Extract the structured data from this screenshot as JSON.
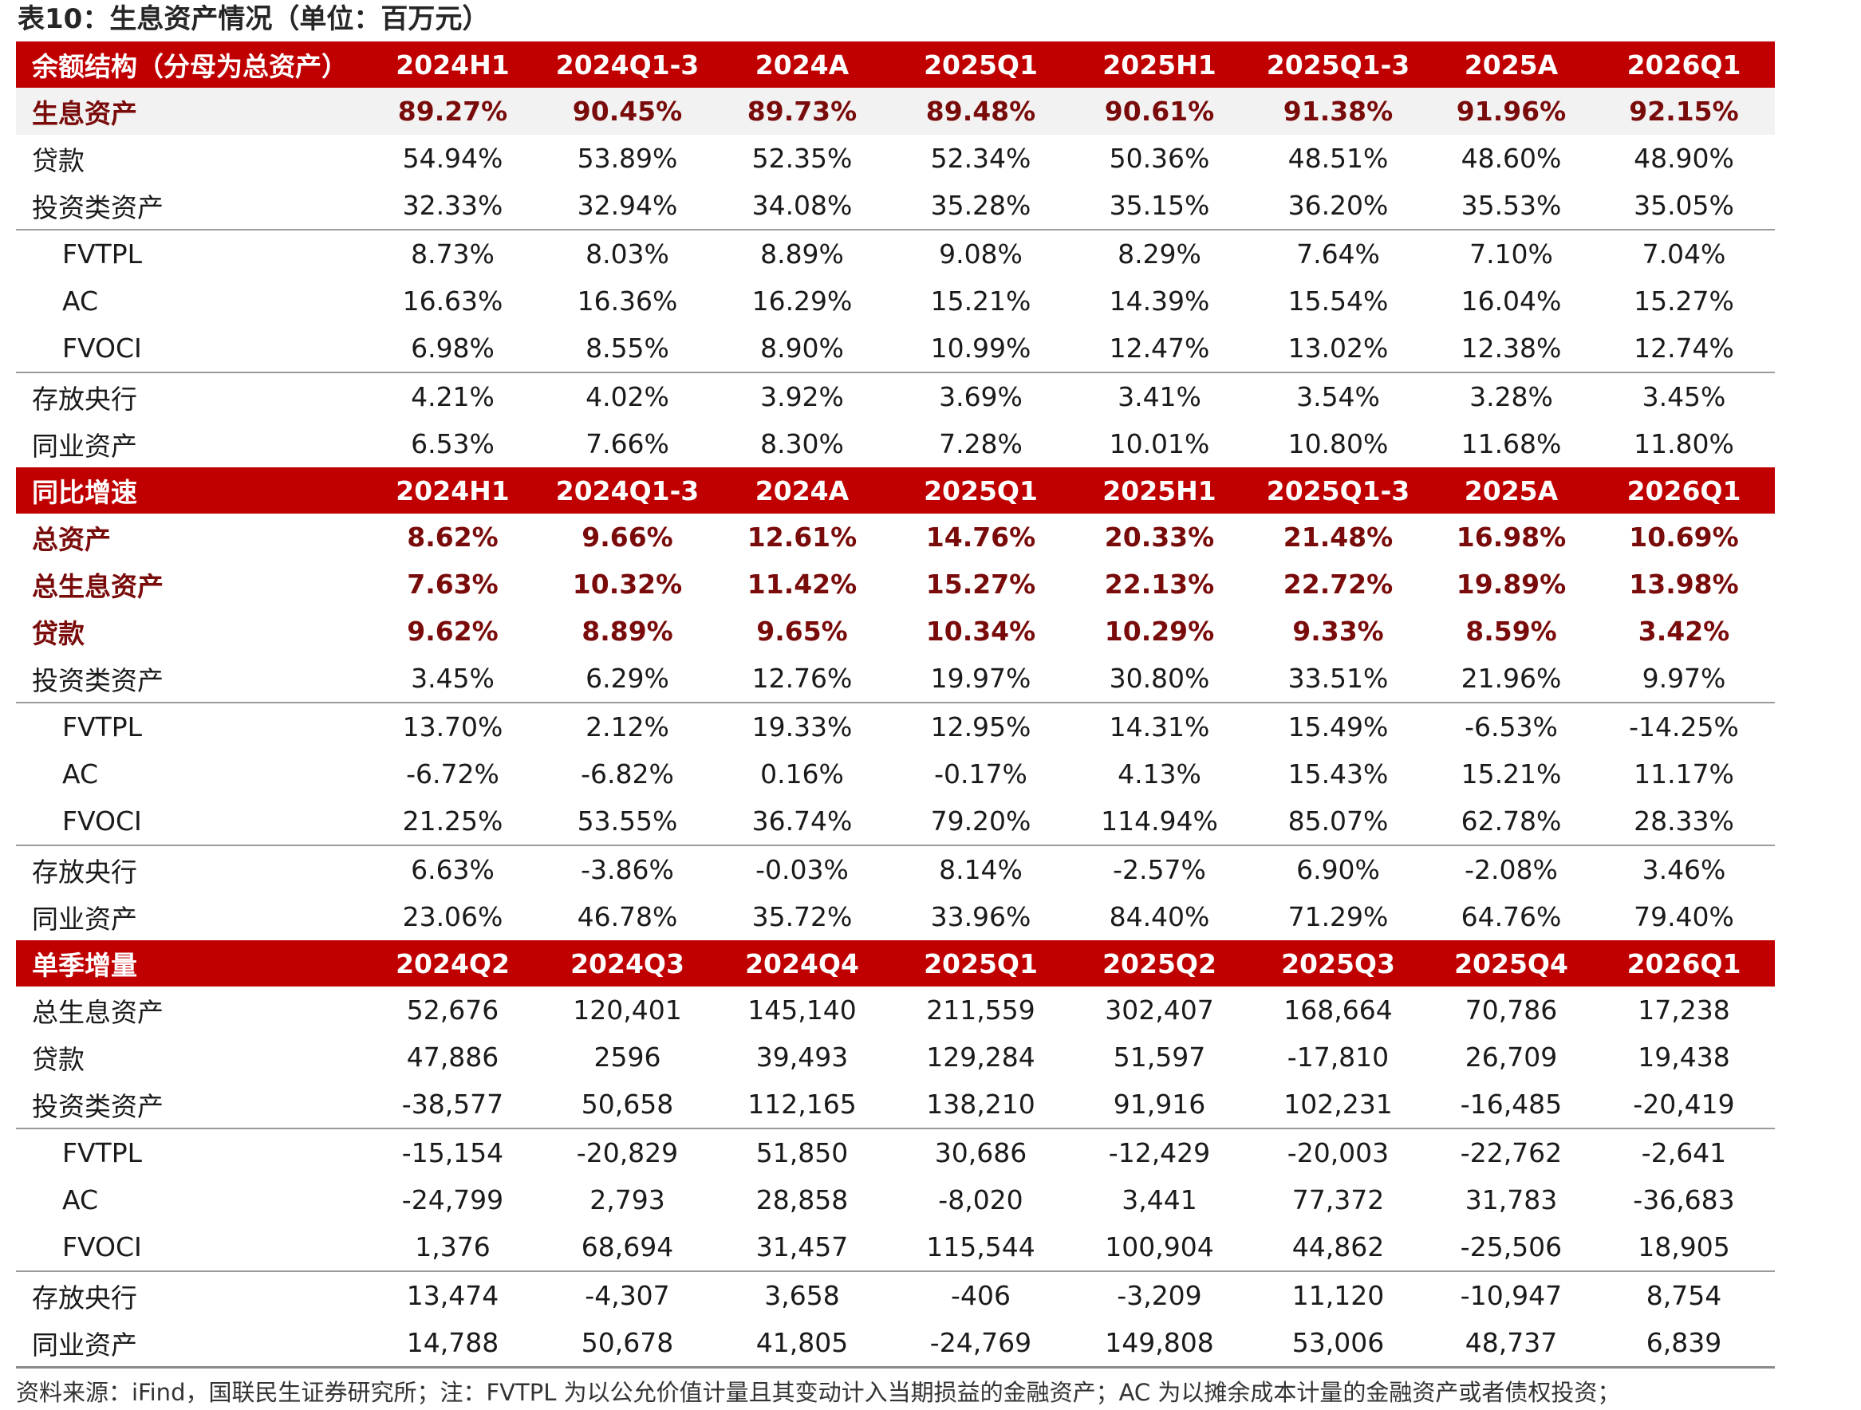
{
  "title": "表10：生息资产情况（单位：百万元）",
  "sections": [
    {
      "header": [
        "余额结构（分母为总资产）",
        "2024H1",
        "2024Q1-3",
        "2024A",
        "2025Q1",
        "2025H1",
        "2025Q1-3",
        "2025A",
        "2026Q1"
      ],
      "rows": [
        {
          "label": "生息资产",
          "values": [
            "89.27%",
            "90.45%",
            "89.73%",
            "89.48%",
            "90.61%",
            "91.38%",
            "91.96%",
            "92.15%"
          ],
          "bold": true,
          "shaded": true
        },
        {
          "label": "贷款",
          "values": [
            "54.94%",
            "53.89%",
            "52.35%",
            "52.34%",
            "50.36%",
            "48.51%",
            "48.60%",
            "48.90%"
          ]
        },
        {
          "label": "投资类资产",
          "values": [
            "32.33%",
            "32.94%",
            "34.08%",
            "35.28%",
            "35.15%",
            "36.20%",
            "35.53%",
            "35.05%"
          ],
          "sep": true
        },
        {
          "label": "FVTPL",
          "values": [
            "8.73%",
            "8.03%",
            "8.89%",
            "9.08%",
            "8.29%",
            "7.64%",
            "7.10%",
            "7.04%"
          ],
          "indent": true
        },
        {
          "label": "AC",
          "values": [
            "16.63%",
            "16.36%",
            "16.29%",
            "15.21%",
            "14.39%",
            "15.54%",
            "16.04%",
            "15.27%"
          ],
          "indent": true
        },
        {
          "label": "FVOCI",
          "values": [
            "6.98%",
            "8.55%",
            "8.90%",
            "10.99%",
            "12.47%",
            "13.02%",
            "12.38%",
            "12.74%"
          ],
          "indent": true,
          "sep": true
        },
        {
          "label": "存放央行",
          "values": [
            "4.21%",
            "4.02%",
            "3.92%",
            "3.69%",
            "3.41%",
            "3.54%",
            "3.28%",
            "3.45%"
          ]
        },
        {
          "label": "同业资产",
          "values": [
            "6.53%",
            "7.66%",
            "8.30%",
            "7.28%",
            "10.01%",
            "10.80%",
            "11.68%",
            "11.80%"
          ]
        }
      ]
    },
    {
      "header": [
        "同比增速",
        "2024H1",
        "2024Q1-3",
        "2024A",
        "2025Q1",
        "2025H1",
        "2025Q1-3",
        "2025A",
        "2026Q1"
      ],
      "rows": [
        {
          "label": "总资产",
          "values": [
            "8.62%",
            "9.66%",
            "12.61%",
            "14.76%",
            "20.33%",
            "21.48%",
            "16.98%",
            "10.69%"
          ],
          "bold": true
        },
        {
          "label": "总生息资产",
          "values": [
            "7.63%",
            "10.32%",
            "11.42%",
            "15.27%",
            "22.13%",
            "22.72%",
            "19.89%",
            "13.98%"
          ],
          "bold": true
        },
        {
          "label": "贷款",
          "values": [
            "9.62%",
            "8.89%",
            "9.65%",
            "10.34%",
            "10.29%",
            "9.33%",
            "8.59%",
            "3.42%"
          ],
          "bold": true
        },
        {
          "label": "投资类资产",
          "values": [
            "3.45%",
            "6.29%",
            "12.76%",
            "19.97%",
            "30.80%",
            "33.51%",
            "21.96%",
            "9.97%"
          ],
          "sep": true
        },
        {
          "label": "FVTPL",
          "values": [
            "13.70%",
            "2.12%",
            "19.33%",
            "12.95%",
            "14.31%",
            "15.49%",
            "-6.53%",
            "-14.25%"
          ],
          "indent": true
        },
        {
          "label": "AC",
          "values": [
            "-6.72%",
            "-6.82%",
            "0.16%",
            "-0.17%",
            "4.13%",
            "15.43%",
            "15.21%",
            "11.17%"
          ],
          "indent": true
        },
        {
          "label": "FVOCI",
          "values": [
            "21.25%",
            "53.55%",
            "36.74%",
            "79.20%",
            "114.94%",
            "85.07%",
            "62.78%",
            "28.33%"
          ],
          "indent": true,
          "sep": true
        },
        {
          "label": "存放央行",
          "values": [
            "6.63%",
            "-3.86%",
            "-0.03%",
            "8.14%",
            "-2.57%",
            "6.90%",
            "-2.08%",
            "3.46%"
          ]
        },
        {
          "label": "同业资产",
          "values": [
            "23.06%",
            "46.78%",
            "35.72%",
            "33.96%",
            "84.40%",
            "71.29%",
            "64.76%",
            "79.40%"
          ]
        }
      ]
    },
    {
      "header": [
        "单季增量",
        "2024Q2",
        "2024Q3",
        "2024Q4",
        "2025Q1",
        "2025Q2",
        "2025Q3",
        "2025Q4",
        "2026Q1"
      ],
      "rows": [
        {
          "label": "总生息资产",
          "values": [
            "52,676",
            "120,401",
            "145,140",
            "211,559",
            "302,407",
            "168,664",
            "70,786",
            "17,238"
          ]
        },
        {
          "label": "贷款",
          "values": [
            "47,886",
            "2596",
            "39,493",
            "129,284",
            "51,597",
            "-17,810",
            "26,709",
            "19,438"
          ]
        },
        {
          "label": "投资类资产",
          "values": [
            "-38,577",
            "50,658",
            "112,165",
            "138,210",
            "91,916",
            "102,231",
            "-16,485",
            "-20,419"
          ],
          "sep": true
        },
        {
          "label": "FVTPL",
          "values": [
            "-15,154",
            "-20,829",
            "51,850",
            "30,686",
            "-12,429",
            "-20,003",
            "-22,762",
            "-2,641"
          ],
          "indent": true
        },
        {
          "label": "AC",
          "values": [
            "-24,799",
            "2,793",
            "28,858",
            "-8,020",
            "3,441",
            "77,372",
            "31,783",
            "-36,683"
          ],
          "indent": true
        },
        {
          "label": "FVOCI",
          "values": [
            "1,376",
            "68,694",
            "31,457",
            "115,544",
            "100,904",
            "44,862",
            "-25,506",
            "18,905"
          ],
          "indent": true,
          "sep": true
        },
        {
          "label": "存放央行",
          "values": [
            "13,474",
            "-4,307",
            "3,658",
            "-406",
            "-3,209",
            "11,120",
            "-10,947",
            "8,754"
          ]
        },
        {
          "label": "同业资产",
          "values": [
            "14,788",
            "50,678",
            "41,805",
            "-24,769",
            "149,808",
            "53,006",
            "48,737",
            "6,839"
          ],
          "last": true
        }
      ]
    }
  ],
  "footnote": "资料来源：iFind，国联民生证券研究所；注：FVTPL 为以公允价值计量且其变动计入当期损益的金融资产；AC 为以摊余成本计量的金融资产或者债权投资；",
  "colors": {
    "header_bg": "#c00000",
    "bold_text": "#7a0b0b",
    "shaded_row": "#f2f2f2"
  }
}
